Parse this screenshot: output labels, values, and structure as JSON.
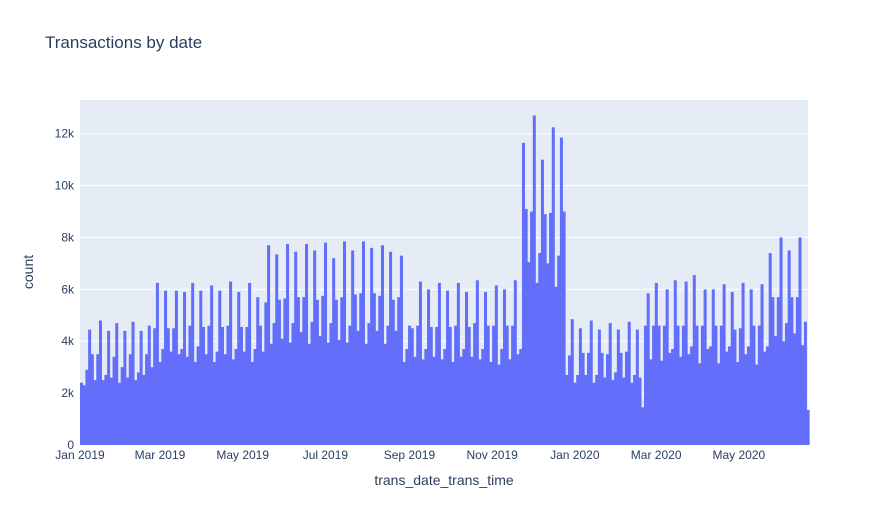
{
  "chart_data": {
    "type": "bar",
    "title": "Transactions by date",
    "xlabel": "trans_date_trans_time",
    "ylabel": "count",
    "x_range": [
      "2019-01-01",
      "2020-06-21"
    ],
    "ylim": [
      0,
      13300
    ],
    "y_ticks": [
      0,
      2000,
      4000,
      6000,
      8000,
      10000,
      12000
    ],
    "y_tick_labels": [
      "0",
      "2k",
      "4k",
      "6k",
      "8k",
      "10k",
      "12k"
    ],
    "x_ticks": [
      "2019-01-01",
      "2019-03-01",
      "2019-05-01",
      "2019-07-01",
      "2019-09-01",
      "2019-11-01",
      "2020-01-01",
      "2020-03-01",
      "2020-05-01"
    ],
    "x_tick_labels": [
      "Jan 2019",
      "Mar 2019",
      "May 2019",
      "Jul 2019",
      "Sep 2019",
      "Nov 2019",
      "Jan 2020",
      "Mar 2020",
      "May 2020"
    ],
    "grid": true,
    "legend": "none",
    "colors": {
      "bar": "#636efa",
      "plot_bg": "#e5ecf6",
      "grid": "#ffffff",
      "text": "#2a3f5f"
    },
    "start_date": "2019-01-01",
    "values": [
      2400,
      2300,
      2900,
      4450,
      3500,
      2500,
      3500,
      4800,
      2500,
      2700,
      4400,
      2600,
      3400,
      4700,
      2400,
      3000,
      4400,
      2600,
      3500,
      4750,
      2500,
      2800,
      4400,
      2700,
      3500,
      4600,
      3000,
      4500,
      6250,
      3200,
      3700,
      5950,
      4500,
      3600,
      4500,
      5950,
      3500,
      3700,
      5900,
      3400,
      4600,
      6250,
      3200,
      3800,
      5950,
      4550,
      3500,
      4600,
      6150,
      3200,
      3600,
      5950,
      4550,
      3500,
      4600,
      6300,
      3300,
      3700,
      5900,
      4550,
      3600,
      4550,
      6250,
      3200,
      3700,
      5700,
      4600,
      3600,
      5500,
      7700,
      3900,
      4700,
      7350,
      5600,
      4100,
      5650,
      7750,
      3950,
      4700,
      7450,
      5700,
      4350,
      5700,
      7750,
      3900,
      4750,
      7500,
      5600,
      4200,
      5750,
      7800,
      3950,
      4700,
      7200,
      5600,
      4050,
      5700,
      7850,
      3950,
      4600,
      7500,
      5800,
      4400,
      5850,
      7850,
      3900,
      4700,
      7600,
      5850,
      4400,
      5750,
      7700,
      3900,
      4600,
      7450,
      5600,
      4400,
      5700,
      7300,
      3200,
      3700,
      4600,
      4500,
      3400,
      4600,
      6300,
      3300,
      3700,
      6000,
      4550,
      3400,
      4550,
      6250,
      3300,
      3700,
      5950,
      4550,
      3200,
      4600,
      6250,
      3400,
      3700,
      5900,
      4550,
      3400,
      4700,
      6350,
      3300,
      3700,
      5900,
      4600,
      3200,
      4600,
      6150,
      3100,
      3700,
      6000,
      4600,
      3300,
      4600,
      6350,
      3500,
      3700,
      11650,
      9100,
      7050,
      9000,
      12700,
      6250,
      7400,
      11000,
      8900,
      7000,
      8950,
      12250,
      6100,
      7300,
      11850,
      9000,
      2700,
      3450,
      4850,
      2400,
      2700,
      4500,
      3550,
      2700,
      3550,
      4800,
      2400,
      2700,
      4450,
      3550,
      2600,
      3500,
      4700,
      2500,
      2800,
      4450,
      3550,
      2600,
      3600,
      4750,
      2400,
      2700,
      4450,
      2600,
      1450,
      4600,
      5850,
      3300,
      4600,
      6250,
      4600,
      3250,
      4600,
      6000,
      3550,
      3700,
      6350,
      4600,
      3400,
      4600,
      6300,
      3500,
      3800,
      6550,
      4600,
      3150,
      4600,
      6000,
      3700,
      3800,
      6000,
      4600,
      3150,
      4600,
      6200,
      3600,
      3800,
      5900,
      4450,
      3200,
      4500,
      6250,
      3500,
      3800,
      6000,
      4600,
      3100,
      4600,
      6200,
      3600,
      3800,
      7400,
      5700,
      4200,
      5700,
      8000,
      4000,
      4700,
      7500,
      5700,
      4300,
      5700,
      8000,
      3850,
      4750,
      1350
    ]
  }
}
